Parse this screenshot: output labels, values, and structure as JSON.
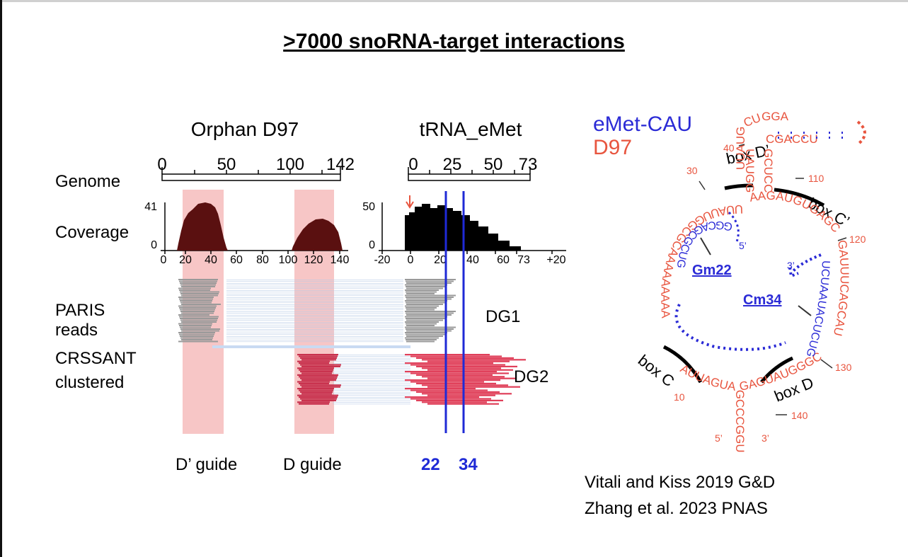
{
  "title": ">7000 snoRNA-target interactions",
  "left": {
    "orphan_title": "Orphan D97",
    "trna_title": "tRNA_eMet",
    "row_labels": {
      "genome": "Genome",
      "coverage": "Coverage",
      "paris_l1": "PARIS",
      "paris_l2": "reads",
      "crs_l1": "CRSSANT",
      "crs_l2": "clustered"
    },
    "orphan_genome_ticks": [
      "0",
      "50",
      "100",
      "142"
    ],
    "trna_genome_ticks": [
      "0",
      "25",
      "50",
      "73"
    ],
    "orphan_cov_ymax": "41",
    "orphan_cov_ymin": "0",
    "orphan_cov_ticks": [
      "0",
      "20",
      "40",
      "60",
      "80",
      "100",
      "120",
      "140"
    ],
    "trna_cov_ymax": "50",
    "trna_cov_ymin": "0",
    "trna_cov_ticks": [
      "-20",
      "0",
      "20",
      "40",
      "60",
      "73",
      "+20"
    ],
    "dg1": "DG1",
    "dg2": "DG2",
    "guide_d_prime": "D’ guide",
    "guide_d": "D guide",
    "pos_22": "22",
    "pos_34": "34"
  },
  "right": {
    "legend_emet": "eMet-CAU",
    "legend_d97": "D97",
    "box_d_prime": "box D’",
    "box_c_prime": "box C’",
    "box_c": "box C",
    "box_d": "box D",
    "gm22": "Gm22",
    "cm34": "Cm34",
    "five_prime_blue": "5’",
    "three_prime_blue": "3’",
    "five_prime_red": "5’",
    "three_prime_red": "3’",
    "num_10": "10",
    "num_30": "30",
    "num_40": "40",
    "num_110": "110",
    "num_120": "120",
    "num_130": "130",
    "num_140": "140",
    "d97_hairpin_left": "UUAUGCUGGA",
    "d97_hairpin_right": "CGACCU",
    "d97_stem_left": "UAUGG",
    "d97_stem_right": "GCUCC",
    "d97_loop_upper": "AAGAUGUGAGCA",
    "d97_loop_left": "UUAUUGGCGCAAAAAAAAA",
    "d97_loop_right": "GAUUUCAGCAU",
    "d97_bottom_left": "AUUAGUAGCCCGGUU",
    "d97_bottom_right": "GAGUAUGGGCAA",
    "emet_guide1": "GGCAGCGCUG",
    "emet_guide2": "UCUAAUACUCUG"
  },
  "credits": {
    "line1": "Vitali and Kiss 2019 G&D",
    "line2": "Zhang et al. 2023 PNAS"
  },
  "colors": {
    "blue": "#2b2bd6",
    "red": "#e8553f",
    "dark_red": "#5a1010",
    "pink_band": "#f7c6c6",
    "read_gray": "#9a9a9a",
    "read_pink": "#e0405a"
  }
}
